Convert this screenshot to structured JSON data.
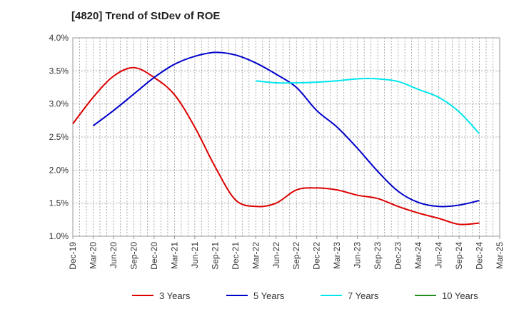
{
  "chart_data": {
    "type": "line",
    "title": "[4820]  Trend of StDev of ROE",
    "xlabel": "",
    "ylabel": "",
    "ylim": [
      1.0,
      4.0
    ],
    "yticks": [
      1.0,
      1.5,
      2.0,
      2.5,
      3.0,
      3.5,
      4.0
    ],
    "ytick_labels": [
      "1.0%",
      "1.5%",
      "2.0%",
      "2.5%",
      "3.0%",
      "3.5%",
      "4.0%"
    ],
    "x_tick_labels": [
      "Dec-19",
      "Mar-20",
      "Jun-20",
      "Sep-20",
      "Dec-20",
      "Mar-21",
      "Jun-21",
      "Sep-21",
      "Dec-21",
      "Mar-22",
      "Jun-22",
      "Sep-22",
      "Dec-22",
      "Mar-23",
      "Jun-23",
      "Sep-23",
      "Dec-23",
      "Mar-24",
      "Jun-24",
      "Sep-24",
      "Dec-24",
      "Mar-25"
    ],
    "grid": true,
    "legend_position": "bottom",
    "series": [
      {
        "name": "3 Years",
        "color": "#dd0000",
        "values": [
          2.7,
          3.1,
          3.42,
          3.55,
          3.4,
          3.14,
          2.65,
          2.05,
          1.55,
          1.45,
          1.5,
          1.7,
          1.73,
          1.7,
          1.62,
          1.57,
          1.45,
          1.35,
          1.27,
          1.18,
          1.2
        ]
      },
      {
        "name": "5 Years",
        "color": "#0000cc",
        "values": [
          null,
          2.67,
          2.9,
          3.15,
          3.4,
          3.6,
          3.72,
          3.78,
          3.74,
          3.62,
          3.45,
          3.25,
          2.9,
          2.65,
          2.33,
          1.98,
          1.68,
          1.51,
          1.45,
          1.47,
          1.54
        ]
      },
      {
        "name": "7 Years",
        "color": "#00e5ee",
        "values": [
          null,
          null,
          null,
          null,
          null,
          null,
          null,
          null,
          null,
          3.35,
          3.32,
          3.32,
          3.33,
          3.35,
          3.38,
          3.38,
          3.34,
          3.22,
          3.1,
          2.88,
          2.55
        ]
      },
      {
        "name": "10 Years",
        "color": "#228b22",
        "values": []
      }
    ]
  }
}
